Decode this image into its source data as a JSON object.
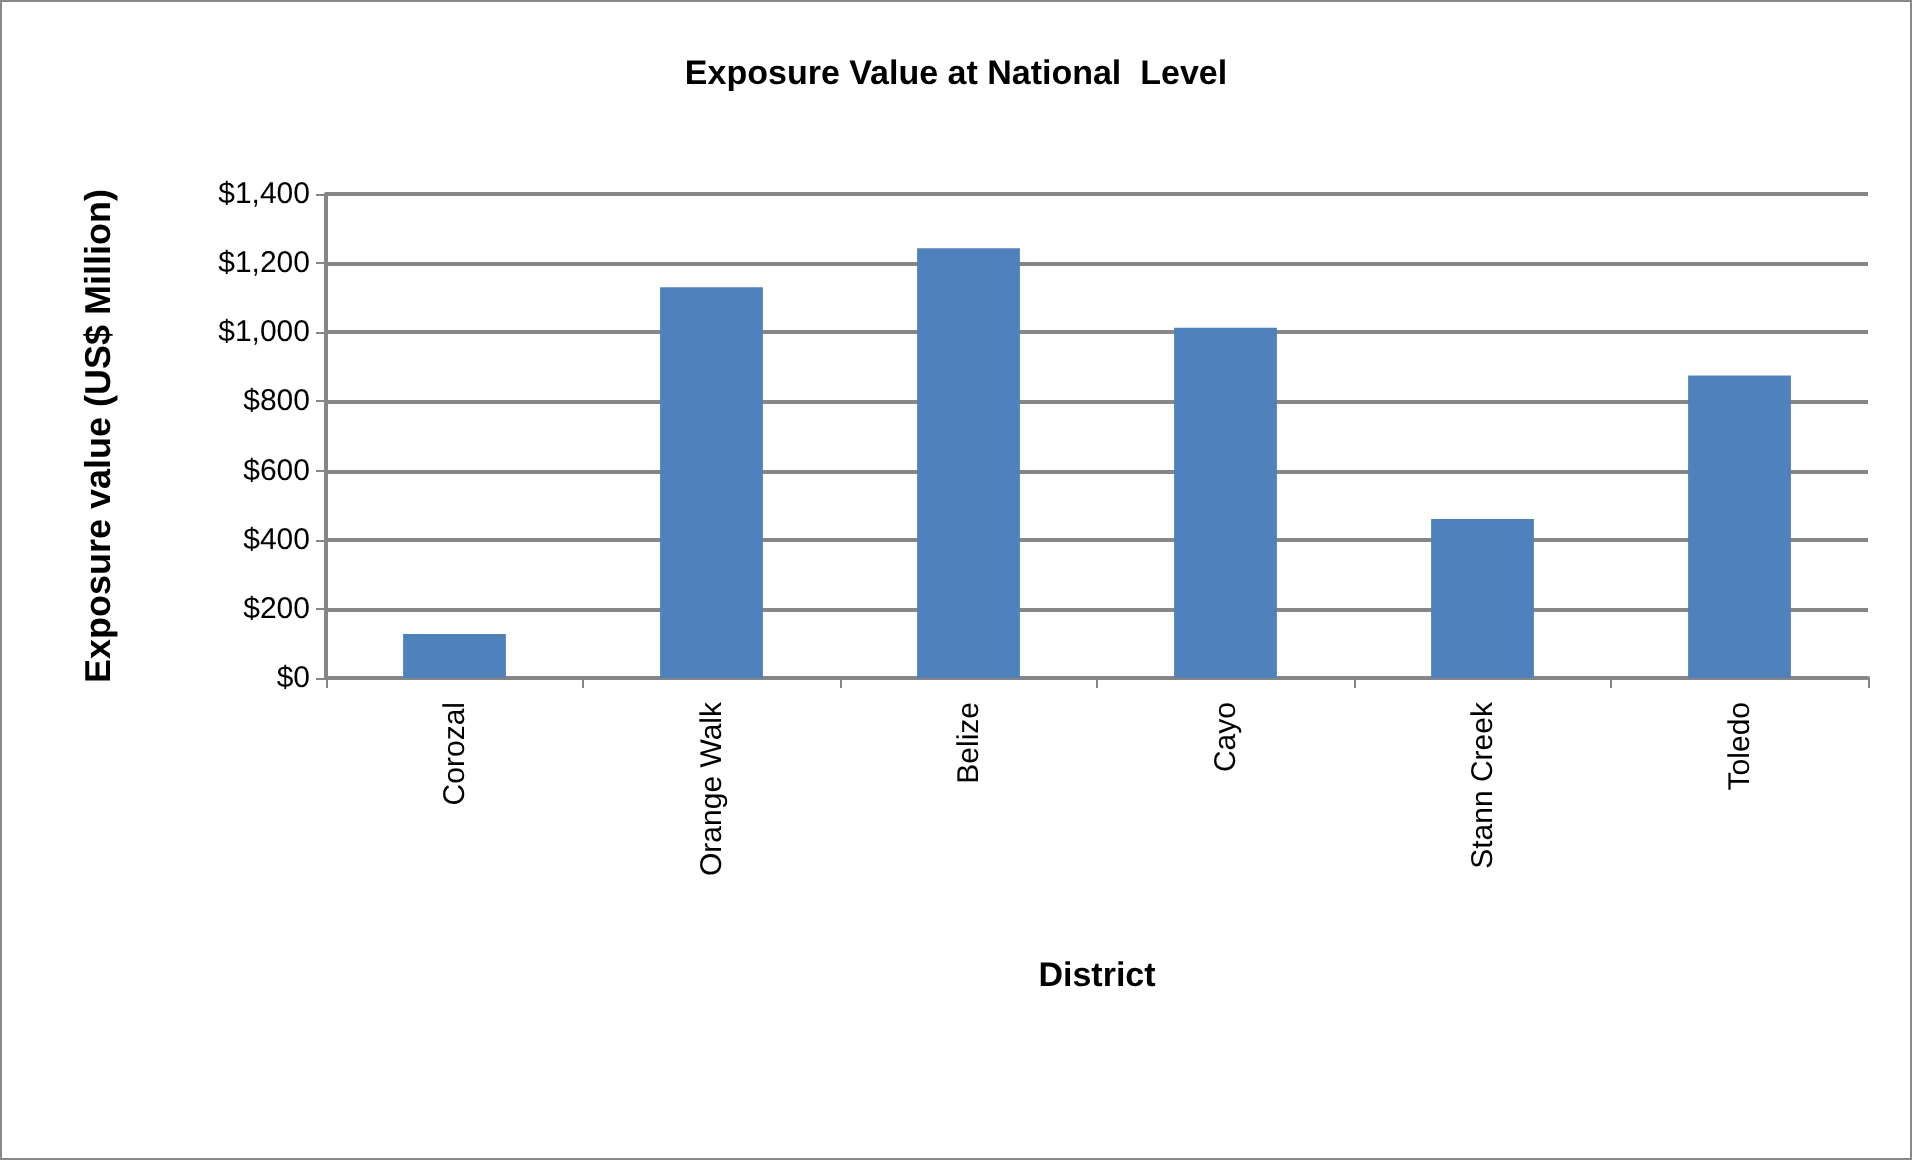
{
  "chart_data": {
    "type": "bar",
    "title": "Exposure Value at National  Level",
    "xlabel": "District",
    "ylabel": "Exposure value (US$ Million)",
    "categories": [
      "Corozal",
      "Orange Walk",
      "Belize",
      "Cayo",
      "Stann Creek",
      "Toledo"
    ],
    "values": [
      127,
      1130,
      1243,
      1013,
      460,
      875
    ],
    "color": "#4f81bd",
    "ylim": [
      0,
      1400
    ],
    "yticks": [
      {
        "value": 0,
        "label": "$0"
      },
      {
        "value": 200,
        "label": "$200"
      },
      {
        "value": 400,
        "label": "$400"
      },
      {
        "value": 600,
        "label": "$600"
      },
      {
        "value": 800,
        "label": "$800"
      },
      {
        "value": 1000,
        "label": "$1,000"
      },
      {
        "value": 1200,
        "label": "$1,200"
      },
      {
        "value": 1400,
        "label": "$1,400"
      }
    ],
    "grid": "y"
  }
}
